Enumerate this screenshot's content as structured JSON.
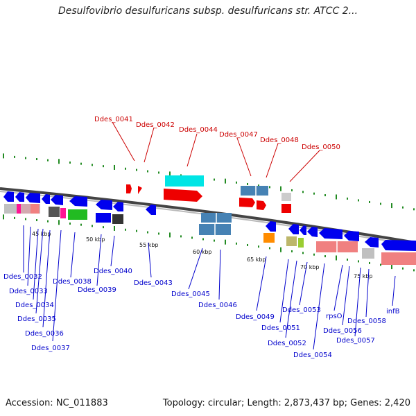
{
  "title": "Desulfovibrio desulfuricans subsp. desulfuricans str. ATCC 2...",
  "footer": {
    "accession": "Accession: NC_011883",
    "summary": "Topology: circular; Length: 2,873,437 bp; Genes: 2,420"
  },
  "colors": {
    "top_label": "#cc0000",
    "bottom_label": "#0000cc",
    "backbone": "#555555",
    "tick": "#228b22"
  },
  "scale_ticks": [
    "45 kbp",
    "50 kbp",
    "55 kbp",
    "60 kbp",
    "65 kbp",
    "70 kbp",
    "75 kbp"
  ],
  "top_labels": [
    "Ddes_0041",
    "Ddes_0042",
    "Ddes_0044",
    "Ddes_0047",
    "Ddes_0048",
    "Ddes_0050"
  ],
  "bottom_labels": [
    "Ddes_0032",
    "Ddes_0033",
    "Ddes_0034",
    "Ddes_0035",
    "Ddes_0036",
    "Ddes_0037",
    "Ddes_0038",
    "Ddes_0039",
    "Ddes_0040",
    "Ddes_0043",
    "Ddes_0045",
    "Ddes_0046",
    "Ddes_0049",
    "Ddes_0051",
    "Ddes_0052",
    "Ddes_0053",
    "Ddes_0054",
    "rpsO",
    "Ddes_0056",
    "Ddes_0057",
    "Ddes_0058",
    "infB"
  ]
}
